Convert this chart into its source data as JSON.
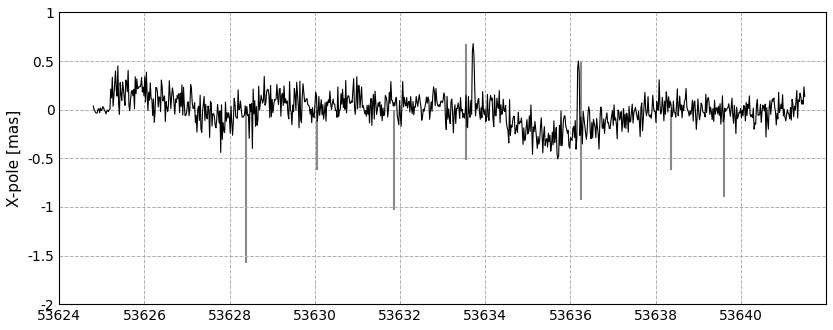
{
  "xmin": 53624,
  "xmax": 53642,
  "ymin": -2,
  "ymax": 1,
  "xticks": [
    53624,
    53626,
    53628,
    53630,
    53632,
    53634,
    53636,
    53638,
    53640
  ],
  "yticks": [
    -2,
    -1.5,
    -1,
    -0.5,
    0,
    0.5,
    1
  ],
  "ylabel": "X-pole [mas]",
  "ylabel_fontsize": 11,
  "tick_fontsize": 10,
  "black_color": "#000000",
  "gray_color": "#888888",
  "background_color": "#ffffff",
  "grid_color": "#b0b0b0",
  "grid_style": "--",
  "seed": 42,
  "n_points": 900,
  "line_width": 0.8,
  "gray_spikes": [
    {
      "x": 53628.38,
      "y_bot": -1.58
    },
    {
      "x": 53630.05,
      "y_bot": -0.62
    },
    {
      "x": 53631.85,
      "y_bot": -1.03
    },
    {
      "x": 53633.55,
      "y_bot": -0.52
    },
    {
      "x": 53633.55,
      "y_top": 0.68
    },
    {
      "x": 53636.25,
      "y_bot": -0.93
    },
    {
      "x": 53636.25,
      "y_top": 0.5
    },
    {
      "x": 53638.35,
      "y_bot": -0.62
    },
    {
      "x": 53639.6,
      "y_bot": -0.9
    },
    {
      "x": 53639.6,
      "y_top": 0.0
    }
  ]
}
